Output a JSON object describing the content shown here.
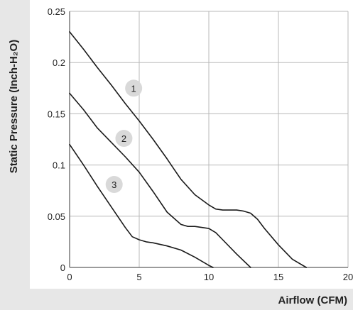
{
  "chart_data": {
    "type": "line",
    "xlabel": "Airflow (CFM)",
    "ylabel": "Static Pressure (Inch-H₂O)",
    "xlim": [
      0,
      20
    ],
    "ylim": [
      0,
      0.25
    ],
    "x_ticks": [
      0,
      5,
      10,
      15,
      20
    ],
    "y_ticks": [
      0,
      0.05,
      0.1,
      0.15,
      0.2,
      0.25
    ],
    "x_tick_labels": [
      "0",
      "5",
      "10",
      "15",
      "20"
    ],
    "y_tick_labels": [
      "0",
      "0.05",
      "0.1",
      "0.15",
      "0.2",
      "0.25"
    ],
    "grid": true,
    "series": [
      {
        "name": "1",
        "x": [
          0,
          1,
          2,
          3,
          4,
          5,
          6,
          7,
          7.5,
          8,
          9,
          10,
          10.5,
          11,
          12,
          12.5,
          13,
          13.5,
          14,
          15,
          16,
          17
        ],
        "y": [
          0.23,
          0.213,
          0.195,
          0.178,
          0.16,
          0.143,
          0.125,
          0.106,
          0.096,
          0.086,
          0.071,
          0.061,
          0.057,
          0.056,
          0.056,
          0.055,
          0.053,
          0.047,
          0.038,
          0.022,
          0.008,
          0.0
        ]
      },
      {
        "name": "2",
        "x": [
          0,
          1,
          2,
          3,
          4,
          5,
          6,
          7,
          8,
          8.5,
          9,
          10,
          10.5,
          11,
          12,
          13
        ],
        "y": [
          0.17,
          0.154,
          0.136,
          0.122,
          0.108,
          0.093,
          0.074,
          0.054,
          0.042,
          0.04,
          0.04,
          0.038,
          0.034,
          0.027,
          0.013,
          0.0
        ]
      },
      {
        "name": "3",
        "x": [
          0,
          1,
          2,
          3,
          4,
          4.5,
          5,
          5.5,
          6,
          7,
          8,
          9,
          9.5,
          10,
          10.3
        ],
        "y": [
          0.12,
          0.1,
          0.079,
          0.059,
          0.039,
          0.03,
          0.027,
          0.025,
          0.024,
          0.021,
          0.017,
          0.01,
          0.006,
          0.002,
          0.0
        ]
      }
    ],
    "curve_labels": [
      {
        "text": "1",
        "x": 4.6,
        "y": 0.175
      },
      {
        "text": "2",
        "x": 3.9,
        "y": 0.126
      },
      {
        "text": "3",
        "x": 3.2,
        "y": 0.081
      }
    ],
    "colors": {
      "line": "#1a1a1a",
      "grid": "#b8b8b8",
      "axis_band": "#e7e7e7",
      "label_circle": "#d9d9d9"
    }
  }
}
